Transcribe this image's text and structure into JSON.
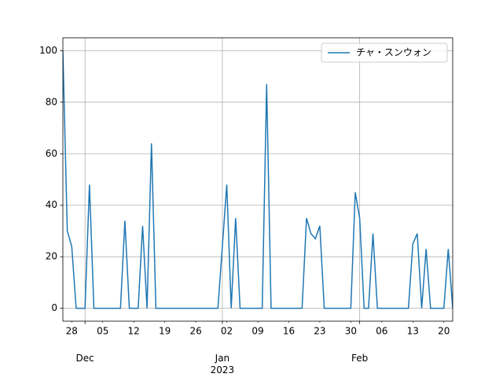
{
  "chart_data": {
    "type": "line",
    "x": [
      "2022-11-26",
      "2022-11-27",
      "2022-11-28",
      "2022-11-29",
      "2022-11-30",
      "2022-12-01",
      "2022-12-02",
      "2022-12-03",
      "2022-12-04",
      "2022-12-05",
      "2022-12-06",
      "2022-12-07",
      "2022-12-08",
      "2022-12-09",
      "2022-12-10",
      "2022-12-11",
      "2022-12-12",
      "2022-12-13",
      "2022-12-14",
      "2022-12-15",
      "2022-12-16",
      "2022-12-17",
      "2022-12-18",
      "2022-12-19",
      "2022-12-20",
      "2022-12-21",
      "2022-12-22",
      "2022-12-23",
      "2022-12-24",
      "2022-12-25",
      "2022-12-26",
      "2022-12-27",
      "2022-12-28",
      "2022-12-29",
      "2022-12-30",
      "2022-12-31",
      "2023-01-01",
      "2023-01-02",
      "2023-01-03",
      "2023-01-04",
      "2023-01-05",
      "2023-01-06",
      "2023-01-07",
      "2023-01-08",
      "2023-01-09",
      "2023-01-10",
      "2023-01-11",
      "2023-01-12",
      "2023-01-13",
      "2023-01-14",
      "2023-01-15",
      "2023-01-16",
      "2023-01-17",
      "2023-01-18",
      "2023-01-19",
      "2023-01-20",
      "2023-01-21",
      "2023-01-22",
      "2023-01-23",
      "2023-01-24",
      "2023-01-25",
      "2023-01-26",
      "2023-01-27",
      "2023-01-28",
      "2023-01-29",
      "2023-01-30",
      "2023-01-31",
      "2023-02-01",
      "2023-02-02",
      "2023-02-03",
      "2023-02-04",
      "2023-02-05",
      "2023-02-06",
      "2023-02-07",
      "2023-02-08",
      "2023-02-09",
      "2023-02-10",
      "2023-02-11",
      "2023-02-12",
      "2023-02-13",
      "2023-02-14",
      "2023-02-15",
      "2023-02-16",
      "2023-02-17",
      "2023-02-18",
      "2023-02-19",
      "2023-02-20",
      "2023-02-21",
      "2023-02-22"
    ],
    "series": [
      {
        "name": "チャ・スンウォン",
        "color": "#1f77b4",
        "values": [
          100,
          30,
          24,
          0,
          0,
          0,
          48,
          0,
          0,
          0,
          0,
          0,
          0,
          0,
          34,
          0,
          0,
          0,
          32,
          0,
          64,
          0,
          0,
          0,
          0,
          0,
          0,
          0,
          0,
          0,
          0,
          0,
          0,
          0,
          0,
          0,
          24,
          48,
          0,
          35,
          0,
          0,
          0,
          0,
          0,
          0,
          87,
          0,
          0,
          0,
          0,
          0,
          0,
          0,
          0,
          35,
          29,
          27,
          32,
          0,
          0,
          0,
          0,
          0,
          0,
          0,
          45,
          35,
          0,
          0,
          29,
          0,
          0,
          0,
          0,
          0,
          0,
          0,
          0,
          25,
          29,
          0,
          23,
          0,
          0,
          0,
          0,
          23,
          0
        ]
      }
    ],
    "xlim": [
      "2022-11-26",
      "2023-02-22"
    ],
    "xticks": [
      {
        "value": "2022-11-28",
        "label": "28"
      },
      {
        "value": "2022-12-05",
        "label": "05"
      },
      {
        "value": "2022-12-12",
        "label": "12"
      },
      {
        "value": "2022-12-19",
        "label": "19"
      },
      {
        "value": "2022-12-26",
        "label": "26"
      },
      {
        "value": "2023-01-02",
        "label": "02"
      },
      {
        "value": "2023-01-09",
        "label": "09"
      },
      {
        "value": "2023-01-16",
        "label": "16"
      },
      {
        "value": "2023-01-23",
        "label": "23"
      },
      {
        "value": "2023-01-30",
        "label": "30"
      },
      {
        "value": "2023-02-06",
        "label": "06"
      },
      {
        "value": "2023-02-13",
        "label": "13"
      },
      {
        "value": "2023-02-20",
        "label": "20"
      }
    ],
    "xticks_major": [
      {
        "value": "2022-12-01",
        "label": "Dec"
      },
      {
        "value": "2023-01-01",
        "label": "Jan\n2023"
      },
      {
        "value": "2023-02-01",
        "label": "Feb"
      }
    ],
    "ylim": [
      -5,
      105
    ],
    "yticks": [
      0,
      20,
      40,
      60,
      80,
      100
    ],
    "grid": true,
    "legend": "upper right"
  }
}
